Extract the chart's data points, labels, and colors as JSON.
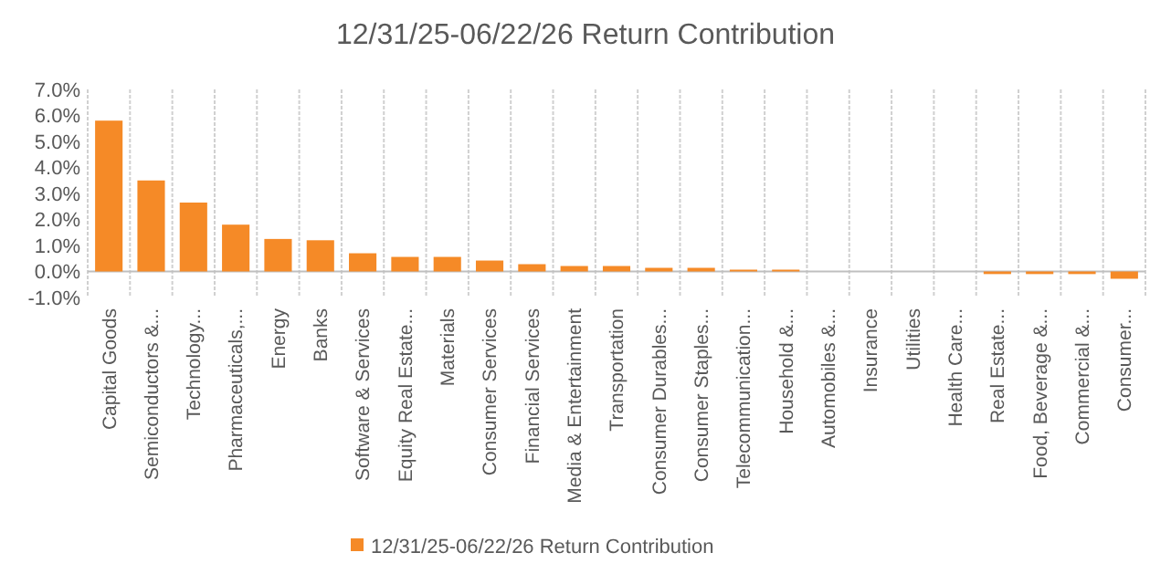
{
  "chart_data": {
    "type": "bar",
    "title": "12/31/25-06/22/26 Return Contribution",
    "categories": [
      "Capital Goods",
      "Semiconductors &...",
      "Technology...",
      "Pharmaceuticals,...",
      "Energy",
      "Banks",
      "Software & Services",
      "Equity Real Estate...",
      "Materials",
      "Consumer Services",
      "Financial Services",
      "Media & Entertainment",
      "Transportation",
      "Consumer Durables...",
      "Consumer Staples...",
      "Telecommunication...",
      "Household &...",
      "Automobiles &...",
      "Insurance",
      "Utilities",
      "Health Care...",
      "Real Estate...",
      "Food, Beverage &...",
      "Commercial &...",
      "Consumer..."
    ],
    "series": [
      {
        "name": "12/31/25-06/22/26 Return Contribution",
        "color": "#f58a27",
        "values": [
          5.8,
          3.5,
          2.65,
          1.8,
          1.25,
          1.2,
          0.7,
          0.56,
          0.56,
          0.42,
          0.28,
          0.21,
          0.21,
          0.14,
          0.14,
          0.07,
          0.07,
          0,
          0,
          0,
          0,
          -0.1,
          -0.1,
          -0.1,
          -0.28
        ]
      }
    ],
    "ylim": [
      -1,
      7
    ],
    "yticks": [
      {
        "value": -1,
        "label": "-1.0%"
      },
      {
        "value": 0,
        "label": "0.0%"
      },
      {
        "value": 1,
        "label": "1.0%"
      },
      {
        "value": 2,
        "label": "2.0%"
      },
      {
        "value": 3,
        "label": "3.0%"
      },
      {
        "value": 4,
        "label": "4.0%"
      },
      {
        "value": 5,
        "label": "5.0%"
      },
      {
        "value": 6,
        "label": "6.0%"
      },
      {
        "value": 7,
        "label": "7.0%"
      }
    ],
    "grid": "x",
    "legend": "bottom"
  }
}
